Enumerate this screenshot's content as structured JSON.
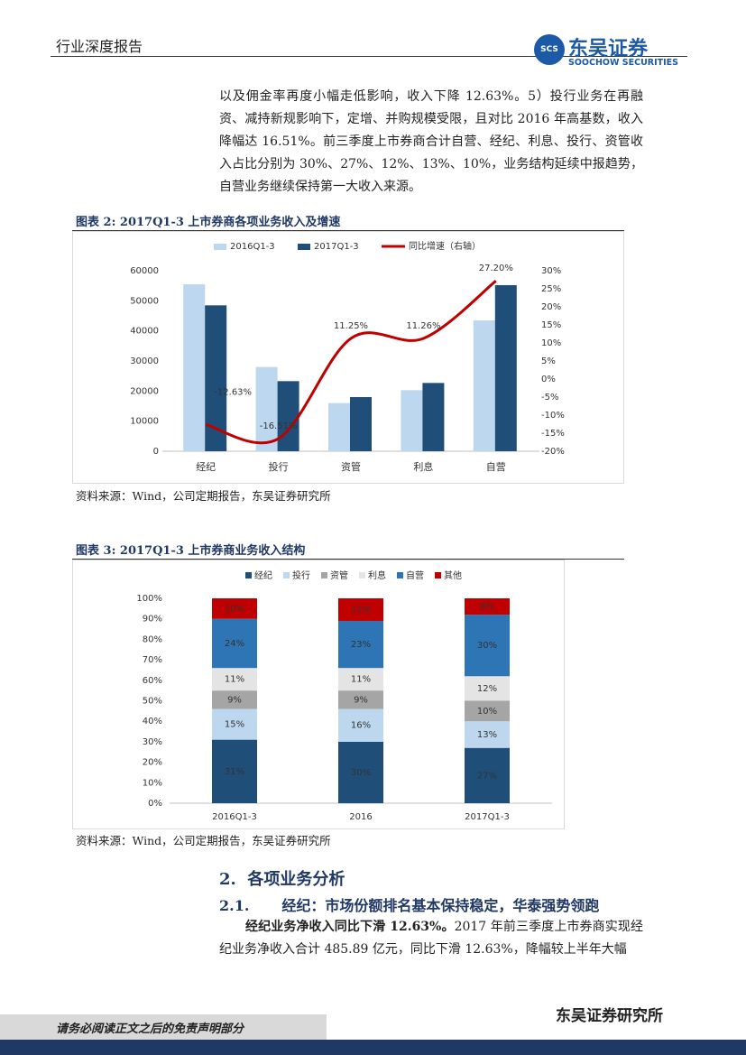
{
  "header": {
    "left": "行业深度报告",
    "logo_mark": "SCS",
    "logo_cn": "东吴证券",
    "logo_en": "SOOCHOW SECURITIES"
  },
  "paragraphs": [
    {
      "text": "以及佣金率再度小幅走低影响，收入下降 12.63%。5）投行业务在再融资、减持新规影响下，定增、并购规模受限，且对比 2016 年高基数，收入降幅达 16.51%。前三季度上市券商合计自营、经纪、利息、投行、资管收入占比分别为 30%、27%、12%、13%、10%，业务结构延续中报趋势，自营业务继续保持第一大收入来源。"
    }
  ],
  "chart_data": [
    {
      "type": "combo",
      "figure_label": "图表 2:",
      "title": "2017Q1-3 上市券商各项业务收入及增速",
      "categories": [
        "经纪",
        "投行",
        "资管",
        "利息",
        "自营"
      ],
      "series": [
        {
          "name": "2016Q1-3",
          "type": "bar",
          "color": "#bdd7ee",
          "values": [
            55500,
            28000,
            16000,
            20300,
            43500
          ]
        },
        {
          "name": "2017Q1-3",
          "type": "bar",
          "color": "#1f4e79",
          "values": [
            48500,
            23300,
            18000,
            22700,
            55200
          ]
        },
        {
          "name": "同比增速（右轴）",
          "type": "line",
          "axis": "y2",
          "color": "#c00000",
          "values": [
            -12.63,
            -16.51,
            11.25,
            11.26,
            27.2
          ],
          "value_labels": [
            "-12.63%",
            "-16.51%",
            "11.25%",
            "11.26%",
            "27.20%"
          ]
        }
      ],
      "ylim": [
        0,
        60000
      ],
      "yticks": [
        0,
        10000,
        20000,
        30000,
        40000,
        50000,
        60000
      ],
      "y2lim": [
        -20,
        30
      ],
      "y2ticks": [
        {
          "value": -20,
          "label": "-20%"
        },
        {
          "value": -15,
          "label": "-15%"
        },
        {
          "value": -10,
          "label": "-10%"
        },
        {
          "value": -5,
          "label": "-5%"
        },
        {
          "value": 0,
          "label": "0%"
        },
        {
          "value": 5,
          "label": "5%"
        },
        {
          "value": 10,
          "label": "10%"
        },
        {
          "value": 15,
          "label": "15%"
        },
        {
          "value": 20,
          "label": "20%"
        },
        {
          "value": 25,
          "label": "25%"
        },
        {
          "value": 30,
          "label": "30%"
        }
      ],
      "grid": false,
      "legend": "top",
      "source": "资料来源：Wind，公司定期报告，东吴证券研究所"
    },
    {
      "type": "stacked_bar",
      "figure_label": "图表 3:",
      "title": "2017Q1-3 上市券商业务收入结构",
      "categories": [
        "2016Q1-3",
        "2016",
        "2017Q1-3"
      ],
      "series": [
        {
          "name": "经纪",
          "color": "#1f4e79",
          "values": [
            31,
            30,
            27
          ],
          "value_labels": [
            "31%",
            "30%",
            "27%"
          ]
        },
        {
          "name": "投行",
          "color": "#bdd7ee",
          "values": [
            15,
            16,
            13
          ],
          "value_labels": [
            "15%",
            "16%",
            "13%"
          ]
        },
        {
          "name": "资管",
          "color": "#a5a5a5",
          "values": [
            9,
            9,
            10
          ],
          "value_labels": [
            "9%",
            "9%",
            "10%"
          ]
        },
        {
          "name": "利息",
          "color": "#e4e4e4",
          "values": [
            11,
            11,
            12
          ],
          "value_labels": [
            "11%",
            "11%",
            "12%"
          ]
        },
        {
          "name": "自营",
          "color": "#2e75b6",
          "values": [
            24,
            23,
            30
          ],
          "value_labels": [
            "24%",
            "23%",
            "30%"
          ]
        },
        {
          "name": "其他",
          "color": "#c00000",
          "values": [
            10,
            11,
            8
          ],
          "value_labels": [
            "10%",
            "11%",
            "8%"
          ]
        }
      ],
      "ylim": [
        0,
        100
      ],
      "yticks": [
        {
          "value": 0,
          "label": "0%"
        },
        {
          "value": 10,
          "label": "10%"
        },
        {
          "value": 20,
          "label": "20%"
        },
        {
          "value": 30,
          "label": "30%"
        },
        {
          "value": 40,
          "label": "40%"
        },
        {
          "value": 50,
          "label": "50%"
        },
        {
          "value": 60,
          "label": "60%"
        },
        {
          "value": 70,
          "label": "70%"
        },
        {
          "value": 80,
          "label": "80%"
        },
        {
          "value": 90,
          "label": "90%"
        },
        {
          "value": 100,
          "label": "100%"
        }
      ],
      "grid": false,
      "legend": "top",
      "source": "资料来源：Wind，公司定期报告，东吴证券研究所"
    }
  ],
  "section": {
    "number": "2.",
    "title": "各项业务分析"
  },
  "subsection": {
    "number": "2.1.",
    "title": "经纪：市场份额排名基本保持稳定，华泰强势领跑"
  },
  "paragraph2": {
    "lead": "经纪业务净收入同比下滑 12.63%。",
    "text": "2017 年前三季度上市券商实现经纪业务净收入合计 485.89 亿元，同比下滑 12.63%，降幅较上半年大幅"
  },
  "footer": {
    "disclaimer": "请务必阅读正文之后的免责声明部分",
    "institute": "东吴证券研究所"
  }
}
